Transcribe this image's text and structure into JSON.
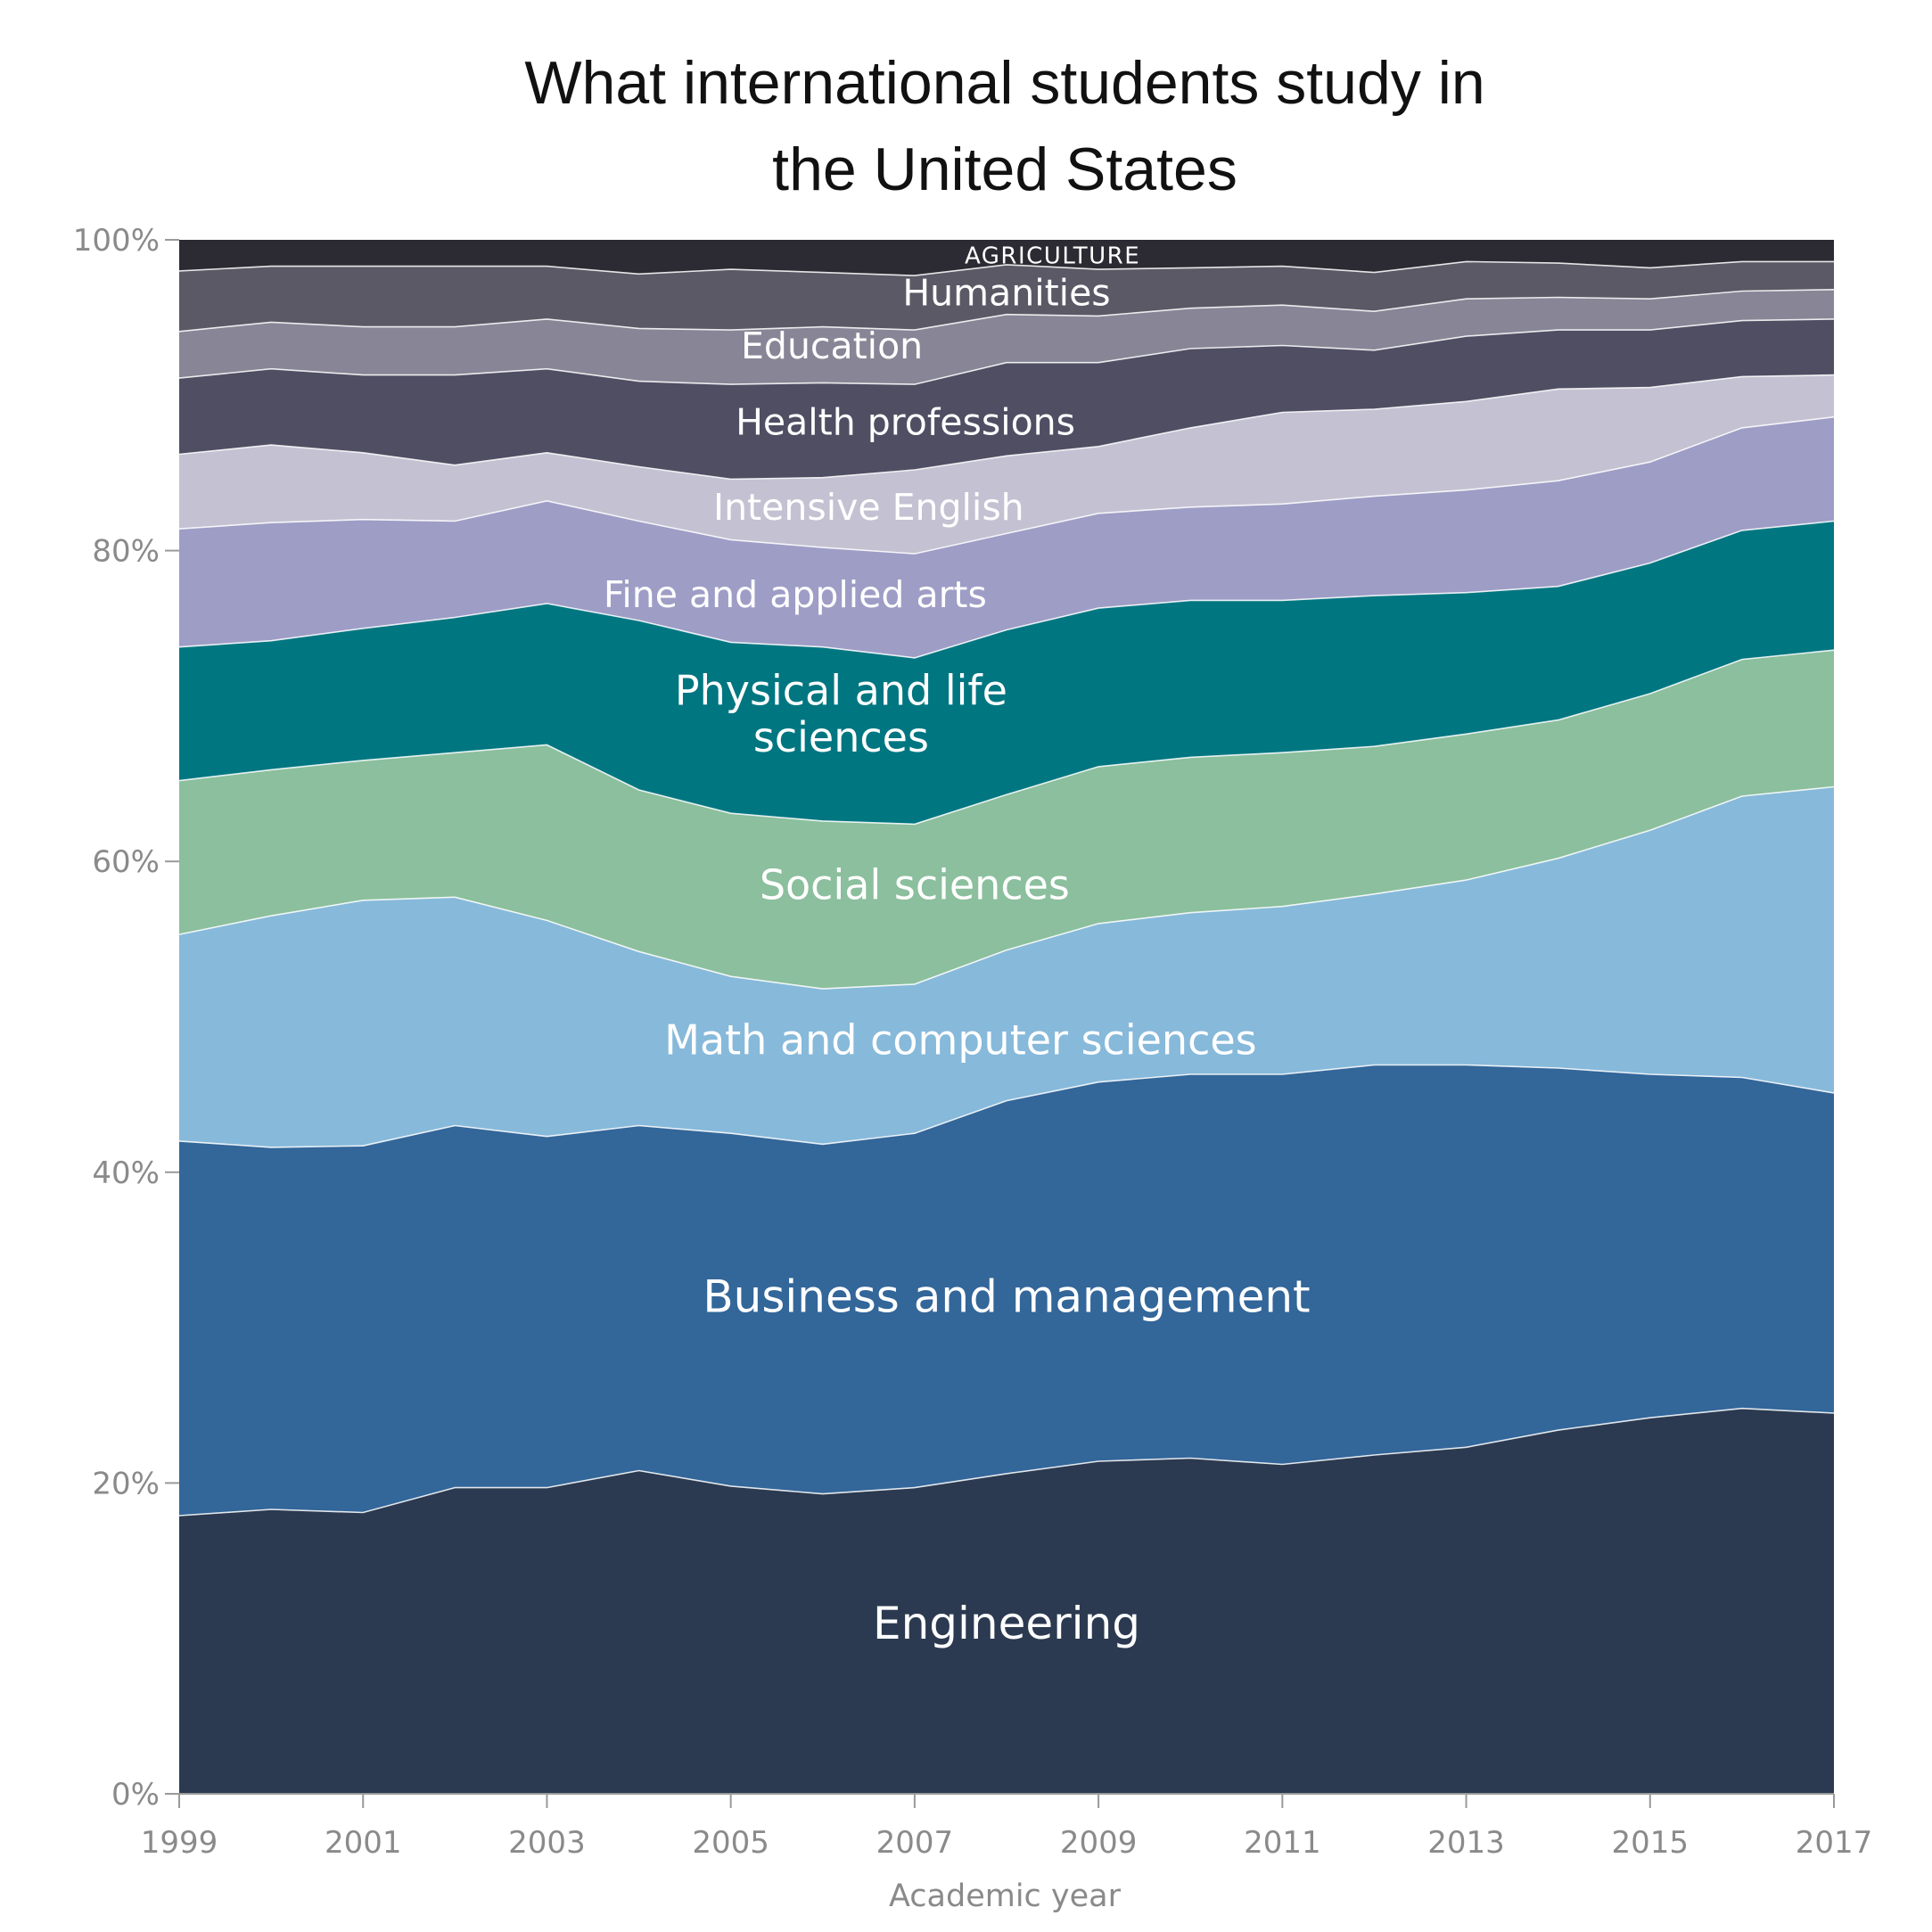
{
  "chart_data": {
    "type": "area",
    "stacked": true,
    "title_lines": [
      "What international students study in",
      "the United States"
    ],
    "xlabel": "Academic year",
    "ylabel": "",
    "ylim": [
      0,
      100
    ],
    "xlim": [
      1999,
      2017
    ],
    "y_ticks": [
      0,
      20,
      40,
      60,
      80,
      100
    ],
    "y_tick_labels": [
      "0%",
      "20%",
      "40%",
      "60%",
      "80%",
      "100%"
    ],
    "x_ticks": [
      1999,
      2001,
      2003,
      2005,
      2007,
      2009,
      2011,
      2013,
      2015,
      2017
    ],
    "x_tick_labels": [
      "1999",
      "2001",
      "2003",
      "2005",
      "2007",
      "2009",
      "2011",
      "2013",
      "2015",
      "2017"
    ],
    "x": [
      1999,
      2000,
      2001,
      2002,
      2003,
      2004,
      2005,
      2006,
      2007,
      2008,
      2009,
      2010,
      2011,
      2012,
      2013,
      2014,
      2015,
      2016,
      2017
    ],
    "series": [
      {
        "name": "Engineering",
        "color": "#2b3a50",
        "label": "Engineering",
        "label_year": 2008,
        "label_y": 11,
        "label_size": 50,
        "values": [
          17.9,
          18.3,
          18.1,
          19.7,
          19.7,
          20.8,
          19.8,
          19.3,
          19.7,
          20.6,
          21.4,
          21.6,
          21.2,
          21.8,
          22.3,
          23.4,
          24.2,
          24.8,
          24.5
        ]
      },
      {
        "name": "Business and management",
        "color": "#336699",
        "label": "Business and management",
        "label_year": 2008,
        "label_y": 32,
        "label_size": 50,
        "values": [
          24.1,
          23.3,
          23.6,
          23.3,
          22.6,
          22.2,
          22.7,
          22.5,
          22.8,
          24.0,
          24.4,
          24.7,
          25.1,
          25.1,
          24.6,
          23.3,
          22.1,
          21.3,
          20.6
        ]
      },
      {
        "name": "Math and computer sciences",
        "color": "#87b9da",
        "label": "Math and computer sciences",
        "label_year": 2007.5,
        "label_y": 48.5,
        "label_size": 46,
        "values": [
          13.3,
          14.9,
          15.8,
          14.7,
          13.9,
          11.2,
          10.1,
          10.0,
          9.6,
          9.7,
          10.2,
          10.4,
          10.8,
          11.0,
          11.9,
          13.5,
          15.7,
          18.1,
          19.7
        ]
      },
      {
        "name": "Social sciences",
        "color": "#8bbf9d",
        "label": "Social sciences",
        "label_year": 2007,
        "label_y": 58.5,
        "label_size": 46,
        "values": [
          9.9,
          9.4,
          9.0,
          9.3,
          11.3,
          10.4,
          10.5,
          10.8,
          10.3,
          10.0,
          10.1,
          10.0,
          9.9,
          9.5,
          9.4,
          8.9,
          8.8,
          8.8,
          8.8
        ]
      },
      {
        "name": "Physical and life sciences",
        "color": "#007681",
        "label": "Physical and life\nsciences",
        "label_year": 2006.2,
        "label_y": 69.5,
        "label_size": 46,
        "values": [
          8.6,
          8.3,
          8.5,
          8.7,
          9.1,
          10.9,
          11.0,
          11.2,
          10.7,
          10.6,
          10.2,
          10.1,
          9.8,
          9.7,
          9.1,
          8.6,
          8.4,
          8.3,
          8.3
        ]
      },
      {
        "name": "Fine and applied arts",
        "color": "#9d9dc6",
        "label": "Fine and applied arts",
        "label_year": 2005.7,
        "label_y": 77.2,
        "label_size": 41,
        "values": [
          7.6,
          7.6,
          7.0,
          6.2,
          6.6,
          6.4,
          6.6,
          6.4,
          6.7,
          6.2,
          6.1,
          6.0,
          6.2,
          6.4,
          6.6,
          6.8,
          6.5,
          6.6,
          6.7
        ]
      },
      {
        "name": "Intensive English",
        "color": "#c4c1d2",
        "label": "Intensive English",
        "label_year": 2006.5,
        "label_y": 82.8,
        "label_size": 41,
        "values": [
          4.8,
          5.0,
          4.3,
          3.6,
          3.1,
          3.5,
          3.9,
          4.5,
          5.4,
          5.0,
          4.3,
          5.1,
          5.9,
          5.6,
          5.7,
          5.9,
          4.8,
          3.3,
          2.7
        ]
      },
      {
        "name": "Health professions",
        "color": "#4f4e63",
        "label": "Health professions",
        "label_year": 2006.9,
        "label_y": 88.3,
        "label_size": 41,
        "values": [
          4.9,
          4.9,
          5.0,
          5.8,
          5.4,
          5.5,
          6.1,
          6.1,
          5.5,
          6.0,
          5.4,
          5.1,
          4.3,
          3.8,
          4.2,
          3.8,
          3.7,
          3.6,
          3.6
        ]
      },
      {
        "name": "Education",
        "color": "#888596",
        "label": "Education",
        "label_year": 2006.1,
        "label_y": 93.2,
        "label_size": 41,
        "values": [
          3.0,
          3.0,
          3.1,
          3.1,
          3.2,
          3.4,
          3.5,
          3.6,
          3.5,
          3.1,
          3.0,
          2.6,
          2.6,
          2.5,
          2.4,
          2.1,
          2.0,
          1.9,
          1.9
        ]
      },
      {
        "name": "Humanities",
        "color": "#5c5966",
        "label": "Humanities",
        "label_year": 2008,
        "label_y": 96.6,
        "label_size": 41,
        "values": [
          3.9,
          3.6,
          3.9,
          3.9,
          3.4,
          3.5,
          3.9,
          3.5,
          3.5,
          3.2,
          3.0,
          2.6,
          2.5,
          2.5,
          2.4,
          2.2,
          2.0,
          1.9,
          1.8
        ]
      },
      {
        "name": "Agriculture",
        "color": "#2c2b33",
        "label": "AGRICULTURE",
        "label_year": 2008.5,
        "label_y": 99.0,
        "label_size": 26,
        "label_spacing": 1.5,
        "values": [
          2.0,
          1.7,
          1.7,
          1.5,
          1.7,
          1.8,
          1.9,
          1.8,
          2.0,
          1.7,
          1.8,
          1.7,
          1.6,
          1.6,
          1.5,
          1.6,
          1.5,
          1.5,
          1.4
        ]
      }
    ]
  }
}
